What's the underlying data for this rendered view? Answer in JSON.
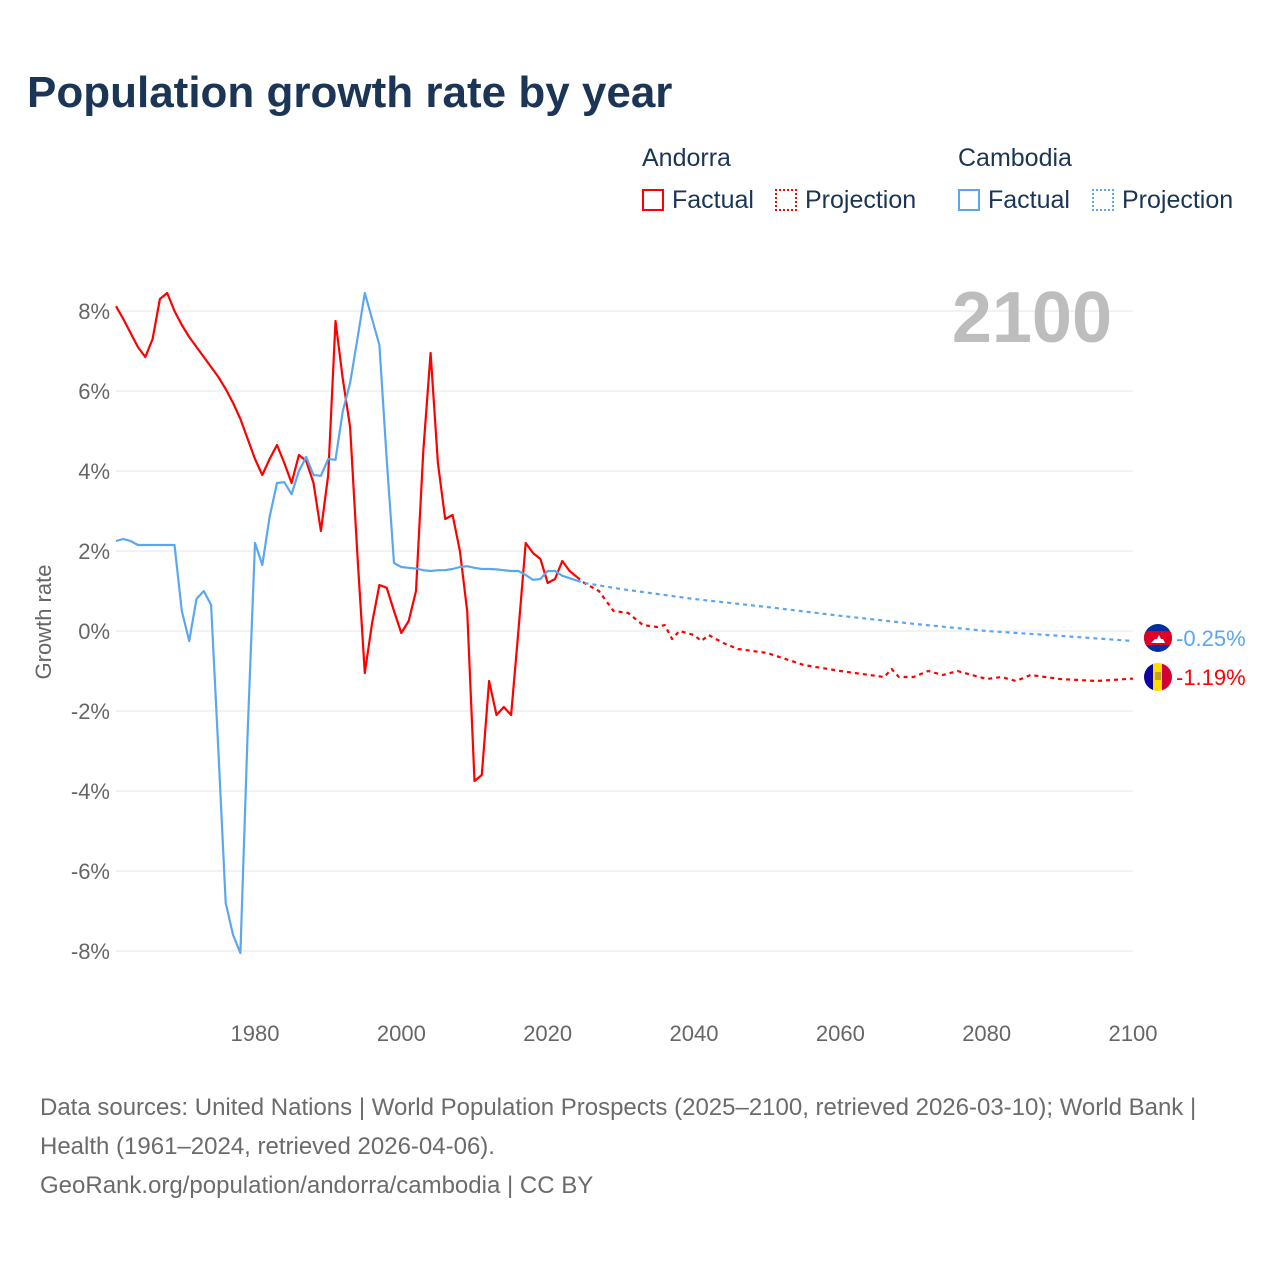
{
  "title": "Population growth rate by year",
  "legend": {
    "groups": [
      {
        "name": "Andorra",
        "factual": "Factual",
        "projection": "Projection",
        "color": "#ff0000"
      },
      {
        "name": "Cambodia",
        "factual": "Factual",
        "projection": "Projection",
        "color": "#5ba7ef"
      }
    ]
  },
  "year_label": "2100",
  "end_labels": {
    "cambodia": "-0.25%",
    "andorra": "-1.19%"
  },
  "sources": {
    "line1": "Data sources: United Nations | World Population Prospects (2025–2100, retrieved 2026-03-10); World Bank | Health (1961–2024, retrieved 2026-04-06).",
    "line2": "GeoRank.org/population/andorra/cambodia | CC BY"
  },
  "chart_data": {
    "type": "line",
    "title": "Population growth rate by year",
    "xlabel": "",
    "ylabel": "Growth rate",
    "xlim": [
      1961,
      2100
    ],
    "ylim": [
      -9,
      9
    ],
    "xticks": [
      1980,
      2000,
      2020,
      2040,
      2060,
      2080,
      2100
    ],
    "xtick_labels": [
      "1980",
      "2000",
      "2020",
      "2040",
      "2060",
      "2080",
      "2100"
    ],
    "yticks": [
      8,
      6,
      4,
      2,
      0,
      -2,
      -4,
      -6,
      -8
    ],
    "ytick_labels": [
      "8%",
      "6%",
      "4%",
      "2%",
      "0%",
      "-2%",
      "-4%",
      "-6%",
      "-8%"
    ],
    "grid": true,
    "series": [
      {
        "name": "Andorra Factual",
        "color": "#ff0000",
        "dashed": false,
        "start": 1961,
        "values": [
          8.12,
          7.8,
          7.45,
          7.1,
          6.85,
          7.3,
          8.3,
          8.45,
          8.0,
          7.65,
          7.35,
          7.1,
          6.85,
          6.6,
          6.35,
          6.05,
          5.7,
          5.3,
          4.8,
          4.3,
          3.9,
          4.3,
          4.65,
          4.2,
          3.7,
          4.4,
          4.25,
          3.7,
          2.5,
          3.9,
          7.75,
          6.3,
          5.1,
          1.9,
          -1.05,
          0.2,
          1.15,
          1.08,
          0.5,
          -0.05,
          0.25,
          1.0,
          4.5,
          6.95,
          4.2,
          2.8,
          2.9,
          2.0,
          0.5,
          -3.75,
          -3.6,
          -1.25,
          -2.1,
          -1.9,
          -2.1,
          0.0,
          2.2,
          1.95,
          1.8,
          1.2,
          1.3,
          1.75,
          1.5,
          1.35
        ]
      },
      {
        "name": "Andorra Projection",
        "color": "#ff0000",
        "dashed": true,
        "points": [
          [
            2024,
            1.35
          ],
          [
            2025,
            1.2
          ],
          [
            2027,
            1.0
          ],
          [
            2029,
            0.5
          ],
          [
            2031,
            0.45
          ],
          [
            2033,
            0.15
          ],
          [
            2035,
            0.1
          ],
          [
            2036,
            0.15
          ],
          [
            2037,
            -0.2
          ],
          [
            2038,
            0.0
          ],
          [
            2040,
            -0.1
          ],
          [
            2041,
            -0.25
          ],
          [
            2042,
            -0.1
          ],
          [
            2044,
            -0.3
          ],
          [
            2046,
            -0.45
          ],
          [
            2050,
            -0.55
          ],
          [
            2055,
            -0.85
          ],
          [
            2060,
            -1.0
          ],
          [
            2066,
            -1.15
          ],
          [
            2067,
            -0.95
          ],
          [
            2068,
            -1.15
          ],
          [
            2070,
            -1.15
          ],
          [
            2072,
            -1.0
          ],
          [
            2074,
            -1.1
          ],
          [
            2076,
            -1.0
          ],
          [
            2078,
            -1.1
          ],
          [
            2080,
            -1.2
          ],
          [
            2082,
            -1.15
          ],
          [
            2084,
            -1.25
          ],
          [
            2086,
            -1.1
          ],
          [
            2090,
            -1.2
          ],
          [
            2095,
            -1.25
          ],
          [
            2100,
            -1.19
          ]
        ]
      },
      {
        "name": "Cambodia Factual",
        "color": "#5ba7ef",
        "dashed": false,
        "start": 1961,
        "values": [
          2.25,
          2.3,
          2.25,
          2.15,
          2.15,
          2.15,
          2.15,
          2.15,
          2.15,
          0.5,
          -0.25,
          0.8,
          1.0,
          0.65,
          -3.0,
          -6.8,
          -7.6,
          -8.05,
          -2.5,
          2.2,
          1.65,
          2.85,
          3.7,
          3.72,
          3.42,
          4.0,
          4.35,
          3.9,
          3.88,
          4.3,
          4.28,
          5.5,
          6.2,
          7.3,
          8.45,
          7.8,
          7.15,
          4.3,
          1.7,
          1.6,
          1.58,
          1.56,
          1.52,
          1.5,
          1.52,
          1.52,
          1.55,
          1.6,
          1.62,
          1.58,
          1.55,
          1.55,
          1.54,
          1.52,
          1.5,
          1.5,
          1.4,
          1.28,
          1.3,
          1.5,
          1.5,
          1.38,
          1.32,
          1.26
        ]
      },
      {
        "name": "Cambodia Projection",
        "color": "#5ba7ef",
        "dashed": true,
        "points": [
          [
            2024,
            1.26
          ],
          [
            2025,
            1.2
          ],
          [
            2030,
            1.05
          ],
          [
            2040,
            0.8
          ],
          [
            2050,
            0.6
          ],
          [
            2060,
            0.38
          ],
          [
            2070,
            0.18
          ],
          [
            2080,
            0.0
          ],
          [
            2090,
            -0.12
          ],
          [
            2100,
            -0.25
          ]
        ]
      }
    ]
  }
}
